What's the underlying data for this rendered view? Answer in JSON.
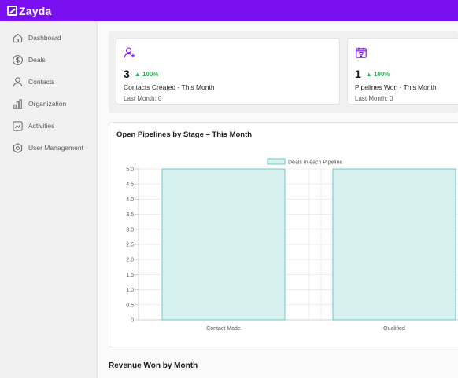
{
  "app": {
    "name": "Zayda",
    "brand_color": "#7a0ff0"
  },
  "sidebar": {
    "items": [
      {
        "label": "Dashboard",
        "icon": "home-icon"
      },
      {
        "label": "Deals",
        "icon": "dollar-icon"
      },
      {
        "label": "Contacts",
        "icon": "user-icon"
      },
      {
        "label": "Organization",
        "icon": "building-chart-icon"
      },
      {
        "label": "Activities",
        "icon": "activity-chart-icon"
      },
      {
        "label": "User Management",
        "icon": "gear-hex-icon"
      }
    ]
  },
  "stats": [
    {
      "icon": "user-add-icon",
      "value": "3",
      "delta": "▲ 100%",
      "title": "Contacts Created - This Month",
      "sub": "Last Month: 0"
    },
    {
      "icon": "calendar-trophy-icon",
      "value": "1",
      "delta": "▲ 100%",
      "title": "Pipelines Won - This Month",
      "sub": "Last Month: 0"
    }
  ],
  "pipeline_chart": {
    "title": "Open Pipelines by Stage – This Month"
  },
  "chart_data": {
    "type": "bar",
    "title": "Open Pipelines by Stage – This Month",
    "categories": [
      "Contact Made",
      "Qualified"
    ],
    "series": [
      {
        "name": "Deals in each Pipeline",
        "values": [
          5,
          5
        ]
      }
    ],
    "ylim": [
      0,
      5
    ],
    "yticks": [
      "0",
      "0.5",
      "1.0",
      "1.5",
      "2.0",
      "2.5",
      "3.0",
      "3.5",
      "4.0",
      "4.5",
      "5.0"
    ],
    "grid": true,
    "legend": "top-center",
    "bar_color": "#d7f1f1",
    "bar_border": "#6cc6c6"
  },
  "revenue": {
    "title": "Revenue Won by Month"
  }
}
